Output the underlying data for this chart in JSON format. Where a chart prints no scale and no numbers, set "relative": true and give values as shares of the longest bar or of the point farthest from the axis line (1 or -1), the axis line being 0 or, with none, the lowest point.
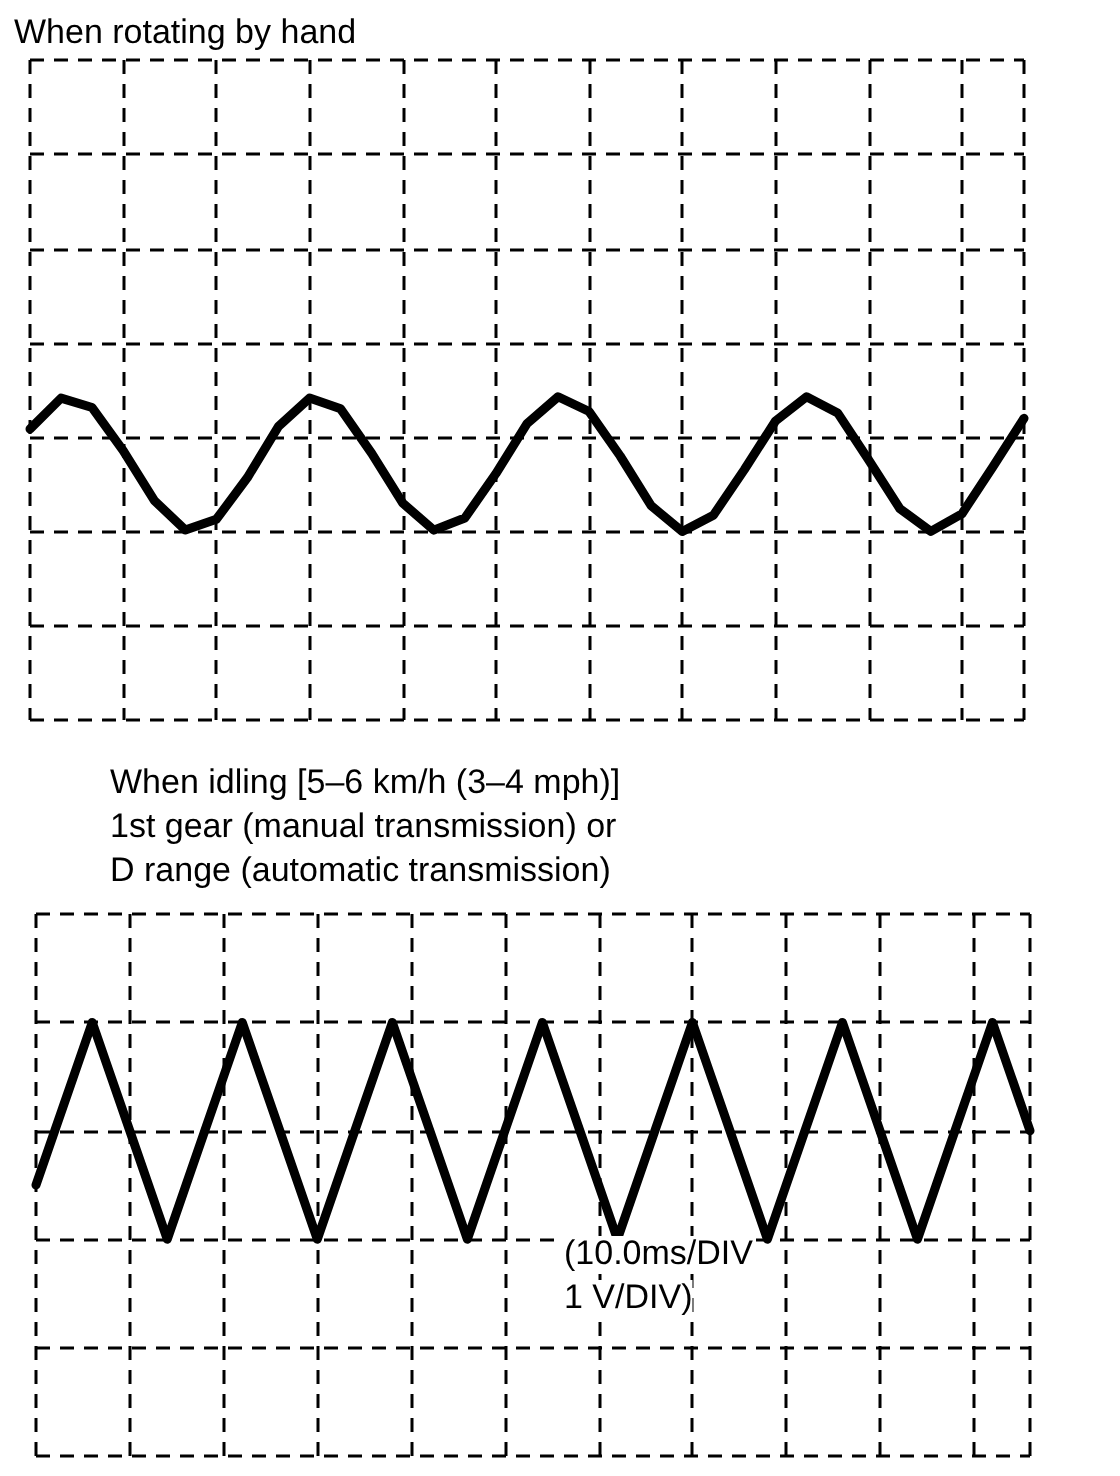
{
  "chart_data": [
    {
      "type": "line",
      "title": "When rotating by hand",
      "relative": true,
      "grid": true,
      "line_style": "solid",
      "categories": [
        null,
        null,
        null,
        null,
        null,
        null,
        null,
        null,
        null,
        null,
        null,
        null,
        null,
        null,
        null,
        null,
        null,
        null,
        null,
        null,
        null,
        null,
        null,
        null,
        null,
        null,
        null,
        null,
        null,
        null,
        null,
        null,
        null
      ],
      "series": [
        {
          "color": "#000000",
          "values": [
            0.76,
            0.99,
            0.92,
            0.6,
            0.23,
            0.01,
            0.09,
            0.4,
            0.78,
            0.99,
            0.91,
            0.58,
            0.21,
            0.01,
            0.1,
            0.43,
            0.8,
            1,
            0.89,
            0.56,
            0.19,
            0,
            0.12,
            0.46,
            0.82,
            1,
            0.88,
            0.53,
            0.17,
            0,
            0.13,
            0.48,
            0.84
          ]
        }
      ]
    },
    {
      "type": "line",
      "title": "When idling [5–6 km/h (3–4 mph)]\n1st gear (manual transmission) or\nD range (automatic transmission)",
      "relative": true,
      "grid": true,
      "line_style": "solid",
      "annotations": [
        "(10.0ms/DIV",
        "1 V/DIV)"
      ],
      "categories": [
        null,
        null,
        null,
        null,
        null,
        null,
        null,
        null,
        null,
        null,
        null,
        null,
        null,
        null,
        null,
        null,
        null,
        null,
        null,
        null,
        null,
        null,
        null,
        null,
        null,
        null,
        null,
        null,
        null,
        null,
        null,
        null,
        null,
        null,
        null,
        null,
        null,
        null,
        null,
        null,
        null,
        null,
        null,
        null,
        null,
        null,
        null,
        null,
        null,
        null,
        null,
        null,
        null,
        null
      ],
      "series": [
        {
          "color": "#000000",
          "values": [
            0.25,
            0.5,
            0.75,
            1,
            0.75,
            0.5,
            0.25,
            0,
            0.25,
            0.5,
            0.75,
            1,
            0.75,
            0.5,
            0.25,
            0,
            0.25,
            0.5,
            0.75,
            1,
            0.75,
            0.5,
            0.25,
            0,
            0.25,
            0.5,
            0.75,
            1,
            0.75,
            0.5,
            0.25,
            0,
            0.25,
            0.5,
            0.75,
            1,
            0.75,
            0.5,
            0.25,
            0,
            0.25,
            0.5,
            0.75,
            1,
            0.75,
            0.5,
            0.25,
            0,
            0.25,
            0.5,
            0.75,
            1,
            0.75,
            0.5
          ]
        }
      ]
    }
  ]
}
